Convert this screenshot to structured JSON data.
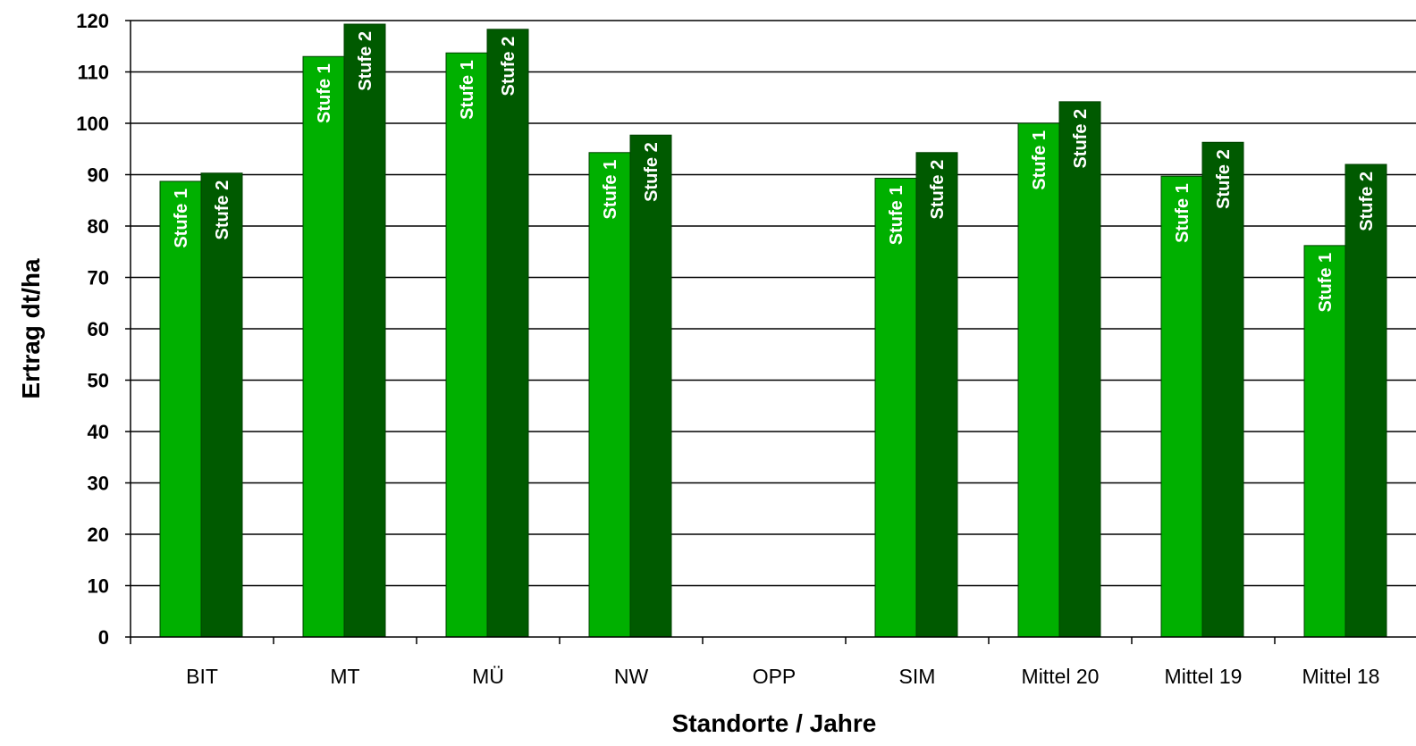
{
  "chart_data": {
    "type": "bar",
    "title": "",
    "xlabel": "Standorte / Jahre",
    "ylabel": "Ertrag dt/ha",
    "categories": [
      "BIT",
      "MT",
      "MÜ",
      "NW",
      "OPP",
      "SIM",
      "Mittel 20",
      "Mittel 19",
      "Mittel 18"
    ],
    "series": [
      {
        "name": "Stufe 1",
        "color": "#00b000",
        "values": [
          88.7,
          113.0,
          113.7,
          94.3,
          null,
          89.3,
          100.0,
          89.7,
          76.2
        ]
      },
      {
        "name": "Stufe 2",
        "color": "#005a00",
        "values": [
          90.3,
          119.3,
          118.3,
          97.7,
          null,
          94.3,
          104.2,
          96.3,
          92.0
        ]
      }
    ],
    "ylim": [
      0,
      120
    ],
    "yticks": [
      0,
      10,
      20,
      30,
      40,
      50,
      60,
      70,
      80,
      90,
      100,
      110,
      120
    ],
    "grid": true,
    "legend": "none",
    "bar_labels_inside": true
  }
}
